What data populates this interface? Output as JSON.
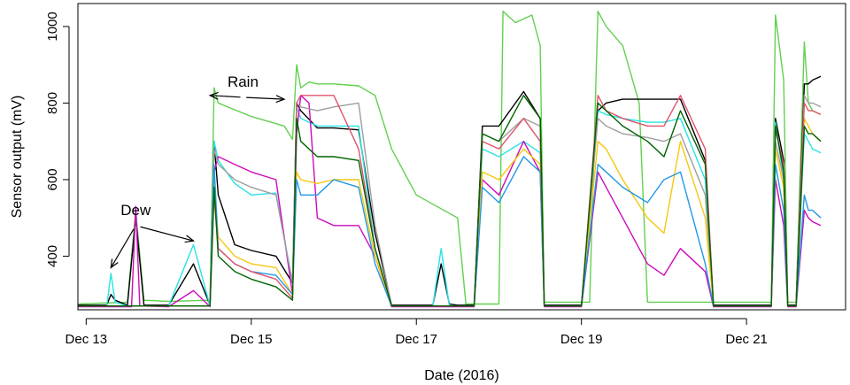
{
  "chart_data": {
    "type": "line",
    "title": "",
    "xlabel": "Date (2016)",
    "ylabel": "Sensor output (mV)",
    "xlim": [
      12.9,
      22.2
    ],
    "ylim": [
      260,
      1060
    ],
    "x_ticks": [
      {
        "value": 13,
        "label": "Dec 13"
      },
      {
        "value": 15,
        "label": "Dec 15"
      },
      {
        "value": 17,
        "label": "Dec 17"
      },
      {
        "value": 19,
        "label": "Dec 19"
      },
      {
        "value": 21,
        "label": "Dec 21"
      }
    ],
    "y_ticks": [
      {
        "value": 400,
        "label": "400"
      },
      {
        "value": 600,
        "label": "600"
      },
      {
        "value": 800,
        "label": "800"
      },
      {
        "value": 1000,
        "label": "1000"
      }
    ],
    "grid": false,
    "legend": "none",
    "annotations": [
      {
        "text": "Dew",
        "anchor": [
          13.6,
          480
        ],
        "arrows_to": [
          [
            13.3,
            370
          ],
          [
            14.3,
            440
          ]
        ]
      },
      {
        "text": "Rain",
        "anchor": [
          14.9,
          815
        ],
        "arrows_to": [
          [
            14.5,
            820
          ],
          [
            15.4,
            810
          ]
        ]
      }
    ],
    "series": [
      {
        "color": "#61d04f",
        "x": [
          12.9,
          13.5,
          13.6,
          13.7,
          14.0,
          14.5,
          14.55,
          14.6,
          15.0,
          15.4,
          15.5,
          15.55,
          15.6,
          15.7,
          15.8,
          16.0,
          16.3,
          16.5,
          16.7,
          17.0,
          17.5,
          17.6,
          17.7,
          18.0,
          18.05,
          18.2,
          18.4,
          18.5,
          18.55,
          19.0,
          19.1,
          19.2,
          19.3,
          19.5,
          19.7,
          19.8,
          20.0,
          20.2,
          20.5,
          21.0,
          21.3,
          21.35,
          21.45,
          21.5,
          21.55,
          21.6,
          21.7,
          21.75,
          21.8,
          21.9
        ],
        "y": [
          275,
          280,
          520,
          285,
          282,
          285,
          840,
          800,
          765,
          740,
          705,
          900,
          840,
          855,
          850,
          850,
          845,
          820,
          680,
          560,
          500,
          275,
          275,
          275,
          1040,
          1010,
          1030,
          950,
          280,
          280,
          280,
          1040,
          1000,
          950,
          800,
          280,
          280,
          280,
          280,
          280,
          280,
          1030,
          860,
          280,
          280,
          280,
          960,
          800,
          780,
          770
        ]
      },
      {
        "color": "#000000",
        "x": [
          12.9,
          13.25,
          13.3,
          13.35,
          13.5,
          13.6,
          13.7,
          14.0,
          14.3,
          14.5,
          14.55,
          14.6,
          14.8,
          15.0,
          15.3,
          15.5,
          15.55,
          15.6,
          15.8,
          16.0,
          16.3,
          16.5,
          16.7,
          17.2,
          17.3,
          17.4,
          17.5,
          17.7,
          17.8,
          18.0,
          18.3,
          18.5,
          18.55,
          19.0,
          19.2,
          19.3,
          19.5,
          19.8,
          20.0,
          20.2,
          20.5,
          20.6,
          21.0,
          21.3,
          21.35,
          21.45,
          21.5,
          21.55,
          21.6,
          21.7,
          21.75,
          21.8,
          21.9
        ],
        "y": [
          272,
          272,
          300,
          285,
          272,
          500,
          272,
          272,
          380,
          272,
          700,
          560,
          430,
          415,
          400,
          330,
          800,
          780,
          735,
          735,
          730,
          460,
          272,
          272,
          380,
          275,
          272,
          272,
          740,
          740,
          830,
          760,
          272,
          272,
          780,
          800,
          810,
          810,
          810,
          810,
          650,
          272,
          272,
          272,
          760,
          650,
          272,
          272,
          272,
          850,
          850,
          860,
          870
        ]
      },
      {
        "color": "#28e2e5",
        "x": [
          12.9,
          13.25,
          13.3,
          13.35,
          13.5,
          14.0,
          14.3,
          14.5,
          14.55,
          14.6,
          14.8,
          15.0,
          15.3,
          15.5,
          15.55,
          15.6,
          15.8,
          16.0,
          16.3,
          16.5,
          16.7,
          17.2,
          17.3,
          17.4,
          17.5,
          17.7,
          17.8,
          18.0,
          18.3,
          18.5,
          18.55,
          19.0,
          19.2,
          19.3,
          19.5,
          19.8,
          20.0,
          20.2,
          20.5,
          20.6,
          21.0,
          21.3,
          21.35,
          21.45,
          21.5,
          21.55,
          21.6,
          21.7,
          21.75,
          21.8,
          21.9
        ],
        "y": [
          270,
          270,
          355,
          280,
          270,
          270,
          430,
          270,
          700,
          650,
          590,
          560,
          565,
          330,
          790,
          760,
          740,
          740,
          740,
          420,
          270,
          270,
          420,
          270,
          270,
          270,
          680,
          660,
          700,
          670,
          270,
          270,
          780,
          770,
          760,
          750,
          750,
          760,
          600,
          270,
          270,
          270,
          750,
          600,
          270,
          270,
          270,
          720,
          700,
          680,
          670
        ]
      },
      {
        "color": "#cd0bbc",
        "x": [
          12.9,
          13.55,
          13.6,
          13.65,
          14.0,
          14.3,
          14.5,
          14.55,
          14.6,
          14.8,
          15.0,
          15.3,
          15.5,
          15.55,
          15.6,
          15.7,
          15.8,
          16.0,
          16.3,
          16.5,
          16.7,
          17.7,
          17.8,
          18.0,
          18.3,
          18.5,
          18.55,
          19.0,
          19.2,
          19.3,
          19.5,
          19.7,
          19.8,
          20.0,
          20.2,
          20.5,
          20.6,
          21.0,
          21.3,
          21.35,
          21.45,
          21.5,
          21.55,
          21.6,
          21.7,
          21.75,
          21.8,
          21.9
        ],
        "y": [
          268,
          268,
          530,
          270,
          268,
          310,
          268,
          620,
          660,
          640,
          620,
          600,
          300,
          720,
          820,
          800,
          500,
          480,
          480,
          400,
          268,
          268,
          600,
          560,
          700,
          620,
          268,
          268,
          620,
          580,
          500,
          420,
          380,
          350,
          420,
          360,
          268,
          268,
          268,
          600,
          480,
          268,
          268,
          268,
          520,
          500,
          490,
          480
        ]
      },
      {
        "color": "#9e9e9e",
        "x": [
          12.9,
          14.5,
          14.55,
          14.6,
          14.8,
          15.0,
          15.3,
          15.5,
          15.55,
          15.6,
          15.8,
          16.0,
          16.3,
          16.5,
          16.7,
          17.7,
          17.8,
          18.0,
          18.3,
          18.5,
          18.55,
          19.0,
          19.2,
          19.3,
          19.5,
          19.8,
          20.0,
          20.2,
          20.5,
          20.6,
          21.0,
          21.3,
          21.35,
          21.45,
          21.5,
          21.55,
          21.6,
          21.7,
          21.75,
          21.8,
          21.9
        ],
        "y": [
          270,
          270,
          680,
          640,
          600,
          580,
          560,
          330,
          800,
          790,
          780,
          790,
          800,
          480,
          270,
          270,
          720,
          700,
          760,
          740,
          270,
          270,
          760,
          740,
          720,
          710,
          700,
          720,
          560,
          270,
          270,
          270,
          700,
          600,
          270,
          270,
          270,
          820,
          800,
          800,
          790
        ]
      },
      {
        "color": "#f5c710",
        "x": [
          12.9,
          14.5,
          14.55,
          14.6,
          14.8,
          15.0,
          15.3,
          15.5,
          15.55,
          15.6,
          15.8,
          16.0,
          16.3,
          16.5,
          16.7,
          17.7,
          17.8,
          18.0,
          18.3,
          18.5,
          18.55,
          19.0,
          19.2,
          19.3,
          19.5,
          19.8,
          20.0,
          20.2,
          20.5,
          20.6,
          21.0,
          21.3,
          21.35,
          21.45,
          21.5,
          21.55,
          21.6,
          21.7,
          21.75,
          21.8,
          21.9
        ],
        "y": [
          270,
          270,
          600,
          450,
          400,
          380,
          370,
          300,
          620,
          600,
          590,
          600,
          600,
          400,
          270,
          270,
          620,
          600,
          680,
          640,
          270,
          270,
          700,
          680,
          600,
          500,
          460,
          700,
          500,
          270,
          270,
          270,
          680,
          580,
          270,
          270,
          270,
          760,
          740,
          720,
          700
        ]
      },
      {
        "color": "#2297e6",
        "x": [
          12.9,
          14.5,
          14.55,
          14.6,
          14.8,
          15.0,
          15.3,
          15.5,
          15.55,
          15.6,
          15.8,
          16.0,
          16.3,
          16.5,
          16.7,
          17.7,
          17.8,
          18.0,
          18.3,
          18.5,
          18.55,
          19.0,
          19.2,
          19.3,
          19.5,
          19.8,
          20.0,
          20.2,
          20.5,
          20.6,
          21.0,
          21.3,
          21.35,
          21.45,
          21.5,
          21.55,
          21.6,
          21.7,
          21.75,
          21.8,
          21.9
        ],
        "y": [
          270,
          270,
          640,
          420,
          380,
          360,
          350,
          300,
          600,
          560,
          560,
          600,
          580,
          380,
          270,
          270,
          580,
          540,
          660,
          620,
          270,
          270,
          640,
          620,
          580,
          540,
          600,
          620,
          380,
          270,
          270,
          270,
          640,
          520,
          270,
          270,
          270,
          560,
          520,
          520,
          500
        ]
      },
      {
        "color": "#df536b",
        "x": [
          12.9,
          14.5,
          14.55,
          14.6,
          14.8,
          15.0,
          15.3,
          15.5,
          15.55,
          15.6,
          15.8,
          16.0,
          16.3,
          16.5,
          16.7,
          17.7,
          17.8,
          18.0,
          18.3,
          18.5,
          18.55,
          19.0,
          19.2,
          19.3,
          19.5,
          19.8,
          20.0,
          20.2,
          20.5,
          20.6,
          21.0,
          21.3,
          21.35,
          21.45,
          21.5,
          21.55,
          21.6,
          21.7,
          21.75,
          21.8,
          21.9
        ],
        "y": [
          270,
          270,
          560,
          420,
          380,
          360,
          340,
          290,
          800,
          820,
          820,
          820,
          680,
          420,
          270,
          270,
          700,
          680,
          760,
          700,
          270,
          270,
          820,
          780,
          760,
          740,
          740,
          820,
          680,
          270,
          270,
          270,
          730,
          640,
          270,
          270,
          270,
          800,
          780,
          780,
          770
        ]
      },
      {
        "color": "#006400",
        "x": [
          12.9,
          14.5,
          14.55,
          14.6,
          14.8,
          15.0,
          15.3,
          15.5,
          15.55,
          15.6,
          15.8,
          16.0,
          16.3,
          16.5,
          16.7,
          17.7,
          17.8,
          18.0,
          18.3,
          18.5,
          18.55,
          19.0,
          19.2,
          19.3,
          19.5,
          19.8,
          20.0,
          20.2,
          20.5,
          20.6,
          21.0,
          21.3,
          21.35,
          21.45,
          21.5,
          21.55,
          21.6,
          21.7,
          21.75,
          21.8,
          21.9
        ],
        "y": [
          270,
          270,
          580,
          400,
          360,
          340,
          320,
          285,
          760,
          700,
          660,
          660,
          650,
          420,
          270,
          270,
          720,
          700,
          820,
          760,
          270,
          270,
          800,
          780,
          740,
          700,
          660,
          780,
          640,
          270,
          270,
          270,
          740,
          620,
          270,
          270,
          270,
          740,
          720,
          720,
          700
        ]
      }
    ]
  }
}
